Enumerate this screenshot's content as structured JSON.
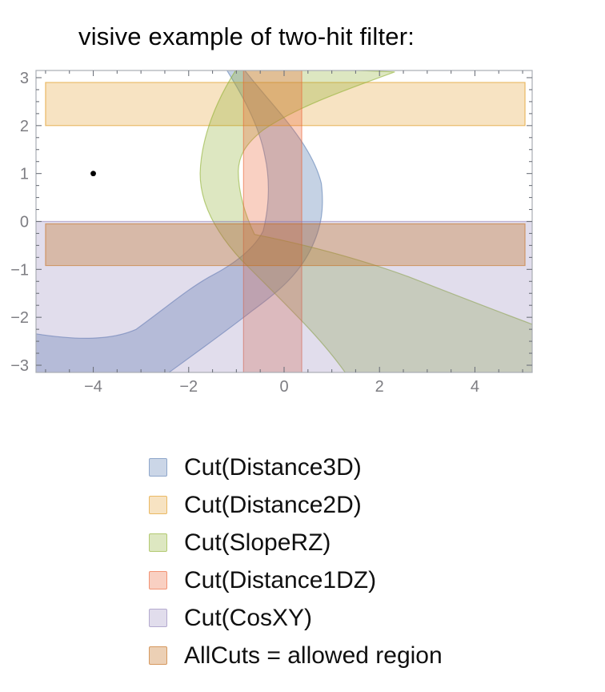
{
  "title": "visive example of two-hit filter:",
  "legend": {
    "items": [
      {
        "id": "cut-distance3d",
        "label": "Cut(Distance3D)",
        "fill": "rgba(94,129,181,0.32)",
        "border": "rgba(94,129,181,0.55)"
      },
      {
        "id": "cut-distance2d",
        "label": "Cut(Distance2D)",
        "fill": "rgba(225,156,36,0.28)",
        "border": "rgba(225,156,36,0.60)"
      },
      {
        "id": "cut-sloperz",
        "label": "Cut(SlopeRZ)",
        "fill": "rgba(143,176,50,0.30)",
        "border": "rgba(143,176,50,0.55)"
      },
      {
        "id": "cut-distance1dz",
        "label": "Cut(Distance1DZ)",
        "fill": "rgba(235,98,53,0.30)",
        "border": "rgba(235,98,53,0.55)"
      },
      {
        "id": "cut-cosxy",
        "label": "Cut(CosXY)",
        "fill": "rgba(135,120,179,0.25)",
        "border": "rgba(135,120,179,0.50)"
      },
      {
        "id": "allcuts",
        "label": "AllCuts = allowed region",
        "fill": "rgba(197,110,26,0.32)",
        "border": "rgba(197,110,26,0.55)"
      }
    ]
  },
  "chart_data": {
    "type": "region-plot",
    "title": "visive example of two-hit filter:",
    "xlabel": "",
    "ylabel": "",
    "xlim": [
      -5.2,
      5.2
    ],
    "ylim": [
      -3.15,
      3.15
    ],
    "grid": false,
    "legend_position": "below-plot",
    "frame_color": "#a9adb5",
    "tick_color": "#6f737c",
    "x_ticks": {
      "values": [
        -4,
        -2,
        0,
        2,
        4
      ],
      "labels": [
        "−4",
        "−2",
        "0",
        "2",
        "4"
      ],
      "minor_step": 0.5,
      "minor_range": [
        -5,
        5
      ]
    },
    "y_ticks": {
      "values": [
        -3,
        -2,
        -1,
        0,
        1,
        2,
        3
      ],
      "labels": [
        "−3",
        "−2",
        "−1",
        "0",
        "1",
        "2",
        "3"
      ],
      "minor_step": 0.25,
      "minor_range": [
        -3,
        3
      ]
    },
    "black_point": {
      "x": -4,
      "y": 1
    },
    "regions": [
      {
        "id": "cut-distance3d",
        "label": "Cut(Distance3D)",
        "color": "#5e81b5",
        "fill_opacity": 0.36,
        "stroke_opacity": 0.6,
        "kind": "path",
        "note": "crescent band: narrow tip at top (x -1.26..-0.9 at y=3.1), bulges right to x=0.8 near y=0.8, sweeps down-left, bottom arc band runs to left frame between y=-2.3 and y=-3.05",
        "path": [
          "M",
          -1.26,
          3.25,
          "L",
          -0.9,
          3.25,
          "C",
          -0.3,
          2.45,
          0.55,
          1.7,
          0.78,
          0.8,
          "C",
          0.84,
          0.3,
          0.8,
          -0.1,
          0.55,
          -0.6,
          "C",
          0.3,
          -1.1,
          -0.1,
          -1.45,
          -0.65,
          -1.85,
          "C",
          -1.2,
          -2.28,
          -1.9,
          -2.78,
          -2.55,
          -3.25,
          "L",
          -5.35,
          -3.25,
          "L",
          -5.35,
          -2.32,
          "C",
          -4.3,
          -2.5,
          -3.6,
          -2.47,
          -3.1,
          -2.25,
          "C",
          -2.45,
          -1.78,
          -1.95,
          -1.35,
          -1.46,
          -1.1,
          "C",
          -1.0,
          -0.85,
          -0.62,
          -0.55,
          -0.44,
          -0.2,
          "C",
          -0.3,
          0.35,
          -0.3,
          0.9,
          -0.4,
          1.35,
          "C",
          -0.52,
          2.0,
          -0.88,
          2.65,
          -1.26,
          3.25,
          "Z"
        ]
      },
      {
        "id": "cut-distance2d",
        "label": "Cut(Distance2D)",
        "color": "#e19c24",
        "fill_opacity": 0.28,
        "stroke_opacity": 0.65,
        "kind": "band",
        "x": [
          -5.0,
          5.05
        ],
        "y": [
          2.0,
          2.9
        ]
      },
      {
        "id": "cut-sloperz",
        "label": "Cut(SlopeRZ)",
        "color": "#8fb032",
        "fill_opacity": 0.3,
        "stroke_opacity": 0.6,
        "kind": "path",
        "note": "C-shaped band opening right: vertex x=-1.76..-0.96 at y=1, upper arm tapers to tip at (2.3,3.1), lower arm widens diagonally to bottom-right corner",
        "path": [
          "M",
          -0.95,
          3.25,
          "L",
          2.32,
          3.12,
          "C",
          1.1,
          2.68,
          0.2,
          2.35,
          -0.45,
          1.9,
          "C",
          -0.83,
          1.6,
          -0.95,
          1.35,
          -0.96,
          1.05,
          "C",
          -0.96,
          0.6,
          -0.82,
          0.15,
          -0.62,
          -0.27,
          "C",
          0.3,
          -0.45,
          1.5,
          -0.75,
          2.6,
          -1.15,
          "C",
          3.5,
          -1.5,
          4.4,
          -1.85,
          5.35,
          -2.2,
          "L",
          5.35,
          -3.25,
          "L",
          1.35,
          -3.25,
          "C",
          0.8,
          -2.45,
          0.1,
          -1.8,
          -0.9,
          -0.8,
          "C",
          -1.5,
          -0.15,
          -1.76,
          0.45,
          -1.76,
          1.0,
          "C",
          -1.74,
          1.75,
          -1.42,
          2.55,
          -0.95,
          3.25,
          "Z"
        ]
      },
      {
        "id": "cut-distance1dz",
        "label": "Cut(Distance1DZ)",
        "color": "#eb6235",
        "fill_opacity": 0.3,
        "stroke_opacity": 0.55,
        "kind": "band",
        "x": [
          -0.85,
          0.37
        ],
        "y": [
          -3.3,
          3.3
        ]
      },
      {
        "id": "cut-cosxy",
        "label": "Cut(CosXY)",
        "color": "#8778b3",
        "fill_opacity": 0.25,
        "stroke_opacity": 0.5,
        "kind": "band",
        "x": [
          -5.35,
          5.35
        ],
        "y": [
          -3.3,
          0.0
        ]
      },
      {
        "id": "allcuts",
        "label": "AllCuts = allowed region",
        "color": "#c56e1a",
        "fill_opacity": 0.32,
        "stroke_opacity": 0.55,
        "kind": "band",
        "x": [
          -5.0,
          5.05
        ],
        "y": [
          -0.92,
          -0.05
        ]
      }
    ]
  }
}
